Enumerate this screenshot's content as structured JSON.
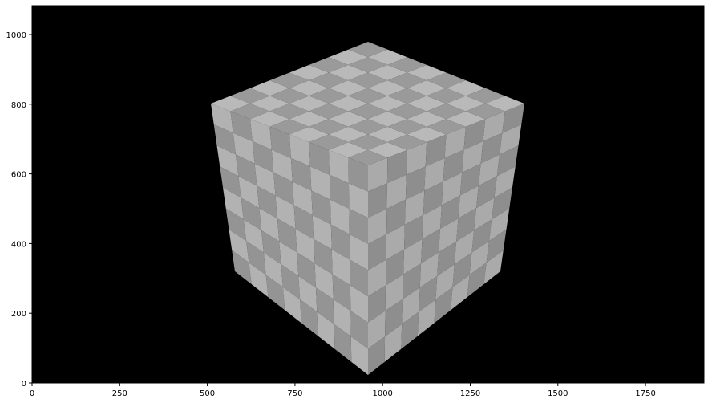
{
  "image": {
    "background_color": "#000000",
    "figure_background_color": "#ffffff",
    "content": "rendered checkerboard-textured cube"
  },
  "axes": {
    "x_ticks": [
      "0",
      "250",
      "500",
      "750",
      "1000",
      "1250",
      "1500",
      "1750"
    ],
    "y_ticks": [
      "0",
      "200",
      "400",
      "600",
      "800",
      "1000"
    ]
  },
  "cube": {
    "checker_light": "#b9b9b9",
    "checker_dark": "#9a9a9a",
    "grid_divisions": 8
  }
}
